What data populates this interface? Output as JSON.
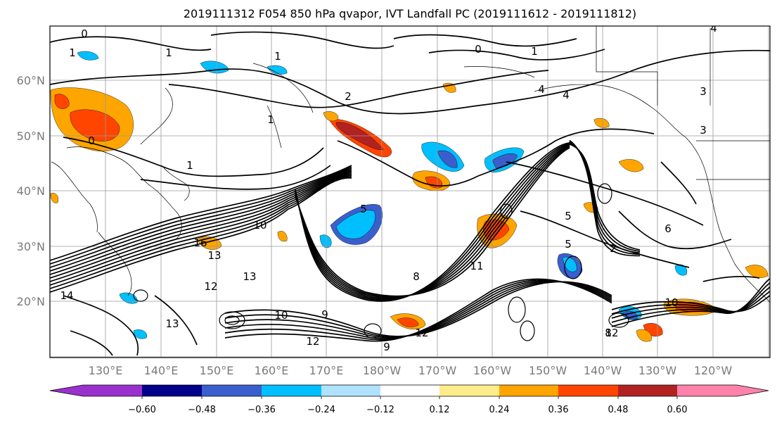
{
  "title": "2019111312 F054 850 hPa qvapor, IVT Landfall PC (2019111612 - 2019111812)",
  "map": {
    "lat_labels": [
      "60°N",
      "50°N",
      "40°N",
      "30°N",
      "20°N"
    ],
    "lon_labels": [
      "130°E",
      "140°E",
      "150°E",
      "160°E",
      "170°E",
      "180°W",
      "170°W",
      "160°W",
      "150°W",
      "140°W",
      "130°W",
      "120°W"
    ],
    "contour_labels": [
      "1",
      "0",
      "1",
      "1",
      "0",
      "1",
      "2",
      "4",
      "3",
      "4",
      "1",
      "0",
      "1",
      "5",
      "10",
      "13",
      "16",
      "14",
      "13",
      "12",
      "13",
      "10",
      "9",
      "12",
      "9",
      "8",
      "11",
      "12",
      "5",
      "2",
      "8",
      "10",
      "12",
      "5",
      "3",
      "6",
      "4"
    ]
  },
  "colorbar": {
    "tick_labels": [
      "−0.60",
      "−0.48",
      "−0.36",
      "−0.24",
      "−0.12",
      "0.12",
      "0.24",
      "0.36",
      "0.48",
      "0.60"
    ],
    "colors": [
      "#9932cc",
      "#00008b",
      "#3a5fcd",
      "#00bfff",
      "#b0e2ff",
      "#ffffff",
      "#ffec8b",
      "#ffa500",
      "#ff4500",
      "#b22222",
      "#ff82ab"
    ]
  }
}
